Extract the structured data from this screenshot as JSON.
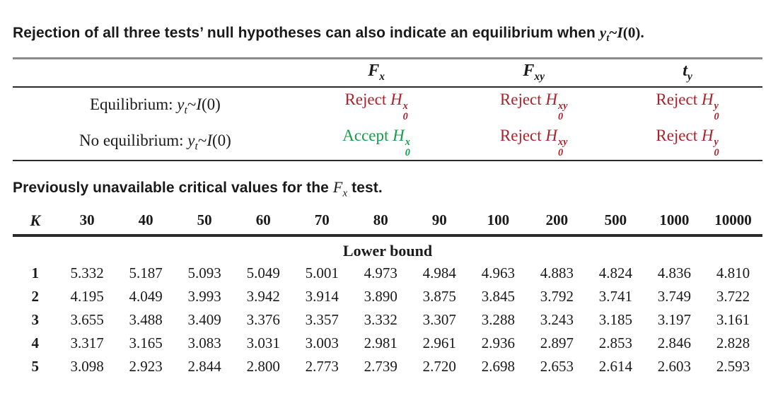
{
  "colors": {
    "reject_red": "#a8232c",
    "accept_green": "#169c4a",
    "rule_dark": "#2a2a2a",
    "rule_gray": "#8a8a8a",
    "text": "#1a1a1a"
  },
  "math": {
    "y": "y",
    "t": "t",
    "tilde": "~",
    "I": "I",
    "arg": "(0)",
    "period": "."
  },
  "intro": {
    "text": "Rejection of all three tests’ null hypotheses can also indicate an equilibrium when "
  },
  "hypothesis_table": {
    "columns": [
      {
        "base": "F",
        "sub": "x"
      },
      {
        "base": "F",
        "sub": "xy"
      },
      {
        "base": "t",
        "sub": "y"
      }
    ],
    "rows": [
      {
        "label": "Equilibrium: ",
        "cells": [
          {
            "word": "Reject",
            "base": "H",
            "sub": "0",
            "sup": "x",
            "tone": "reject"
          },
          {
            "word": "Reject",
            "base": "H",
            "sub": "0",
            "sup": "xy",
            "tone": "reject"
          },
          {
            "word": "Reject",
            "base": "H",
            "sub": "0",
            "sup": "y",
            "tone": "reject"
          }
        ]
      },
      {
        "label": "No equilibrium: ",
        "cells": [
          {
            "word": "Accept",
            "base": "H",
            "sub": "0",
            "sup": "x",
            "tone": "accept"
          },
          {
            "word": "Reject",
            "base": "H",
            "sub": "0",
            "sup": "xy",
            "tone": "reject"
          },
          {
            "word": "Reject",
            "base": "H",
            "sub": "0",
            "sup": "y",
            "tone": "reject"
          }
        ]
      }
    ]
  },
  "caption": {
    "prefix": "Previously unavailable critical values for the ",
    "math_base": "F",
    "math_sub": "x",
    "suffix": " test."
  },
  "critical_table": {
    "k_label": "K",
    "columns": [
      "30",
      "40",
      "50",
      "60",
      "70",
      "80",
      "90",
      "100",
      "200",
      "500",
      "1000",
      "10000"
    ],
    "section_label": "Lower bound",
    "rows": [
      {
        "k": "1",
        "values": [
          "5.332",
          "5.187",
          "5.093",
          "5.049",
          "5.001",
          "4.973",
          "4.984",
          "4.963",
          "4.883",
          "4.824",
          "4.836",
          "4.810"
        ]
      },
      {
        "k": "2",
        "values": [
          "4.195",
          "4.049",
          "3.993",
          "3.942",
          "3.914",
          "3.890",
          "3.875",
          "3.845",
          "3.792",
          "3.741",
          "3.749",
          "3.722"
        ]
      },
      {
        "k": "3",
        "values": [
          "3.655",
          "3.488",
          "3.409",
          "3.376",
          "3.357",
          "3.332",
          "3.307",
          "3.288",
          "3.243",
          "3.185",
          "3.197",
          "3.161"
        ]
      },
      {
        "k": "4",
        "values": [
          "3.317",
          "3.165",
          "3.083",
          "3.031",
          "3.003",
          "2.981",
          "2.961",
          "2.936",
          "2.897",
          "2.853",
          "2.846",
          "2.828"
        ]
      },
      {
        "k": "5",
        "values": [
          "3.098",
          "2.923",
          "2.844",
          "2.800",
          "2.773",
          "2.739",
          "2.720",
          "2.698",
          "2.653",
          "2.614",
          "2.603",
          "2.593"
        ]
      }
    ]
  }
}
